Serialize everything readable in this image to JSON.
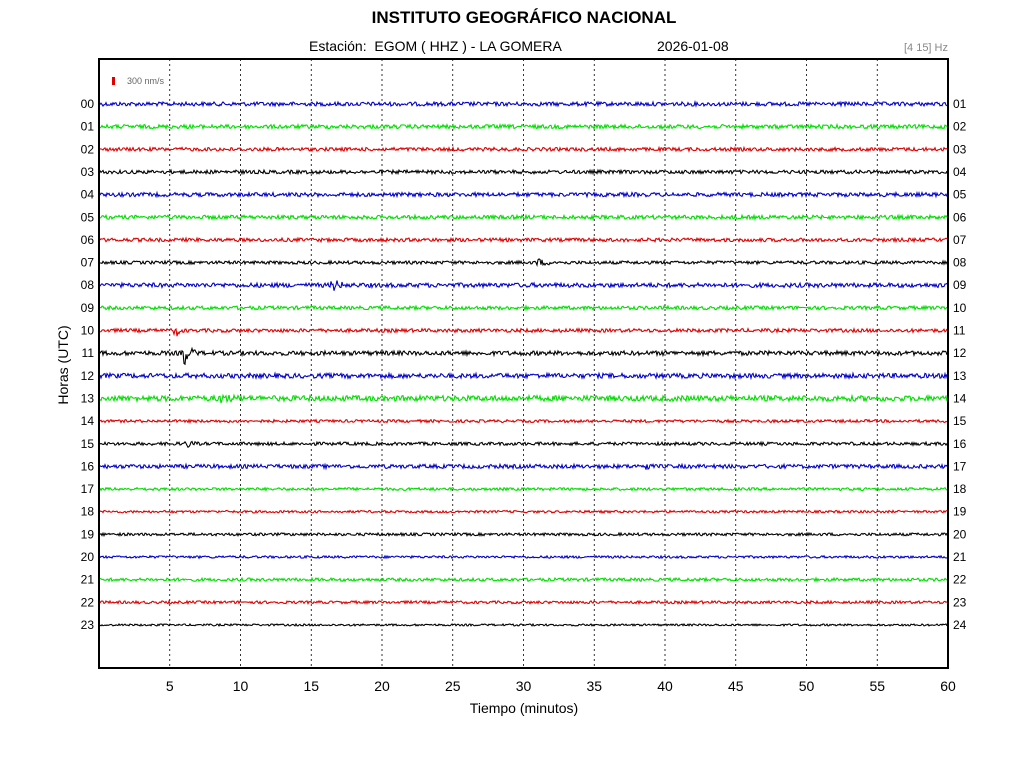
{
  "chart_data": {
    "type": "line",
    "title": "INSTITUTO GEOGRÁFICO NACIONAL",
    "station_line": "Estación:  EGOM ( HHZ ) - LA GOMERA",
    "date": "2026-01-08",
    "filter_band": "[4 15] Hz",
    "scale_label": "300 nm/s",
    "xlabel": "Tiempo (minutos)",
    "ylabel": "Horas (UTC)",
    "xlim": [
      0,
      60
    ],
    "x_ticks": [
      5,
      10,
      15,
      20,
      25,
      30,
      35,
      40,
      45,
      50,
      55,
      60
    ],
    "y_ticks_left": [
      "00",
      "01",
      "02",
      "03",
      "04",
      "05",
      "06",
      "07",
      "08",
      "09",
      "10",
      "11",
      "12",
      "13",
      "14",
      "15",
      "16",
      "17",
      "18",
      "19",
      "20",
      "21",
      "22",
      "23"
    ],
    "y_ticks_right": [
      "01",
      "02",
      "03",
      "04",
      "05",
      "06",
      "07",
      "08",
      "09",
      "10",
      "11",
      "12",
      "13",
      "14",
      "15",
      "16",
      "17",
      "18",
      "19",
      "20",
      "21",
      "22",
      "23",
      "24"
    ],
    "trace_colors": [
      "#0000cc",
      "#00dd00",
      "#dd0000",
      "#000000"
    ],
    "noise_levels": [
      2,
      2,
      1.8,
      1.8,
      2,
      2,
      1.8,
      1.6,
      2.2,
      1.8,
      1.8,
      2.2,
      2.4,
      2.8,
      1.4,
      1.6,
      2,
      1.4,
      1.2,
      1.4,
      1.2,
      1.6,
      1.4,
      1
    ],
    "events": [
      {
        "hour": 8,
        "minute": 16.5,
        "amplitude": 6,
        "duration_min": 1.2
      },
      {
        "hour": 10,
        "minute": 5.4,
        "amplitude": 7,
        "duration_min": 0.6
      },
      {
        "hour": 11,
        "minute": 6.0,
        "amplitude": 13,
        "duration_min": 1.0
      },
      {
        "hour": 13,
        "minute": 8.5,
        "amplitude": 4,
        "duration_min": 1.5
      },
      {
        "hour": 15,
        "minute": 6.2,
        "amplitude": 4,
        "duration_min": 0.8
      },
      {
        "hour": 16,
        "minute": 38.6,
        "amplitude": 7,
        "duration_min": 0.4
      },
      {
        "hour": 7,
        "minute": 31.0,
        "amplitude": 3,
        "duration_min": 1.5
      }
    ]
  }
}
